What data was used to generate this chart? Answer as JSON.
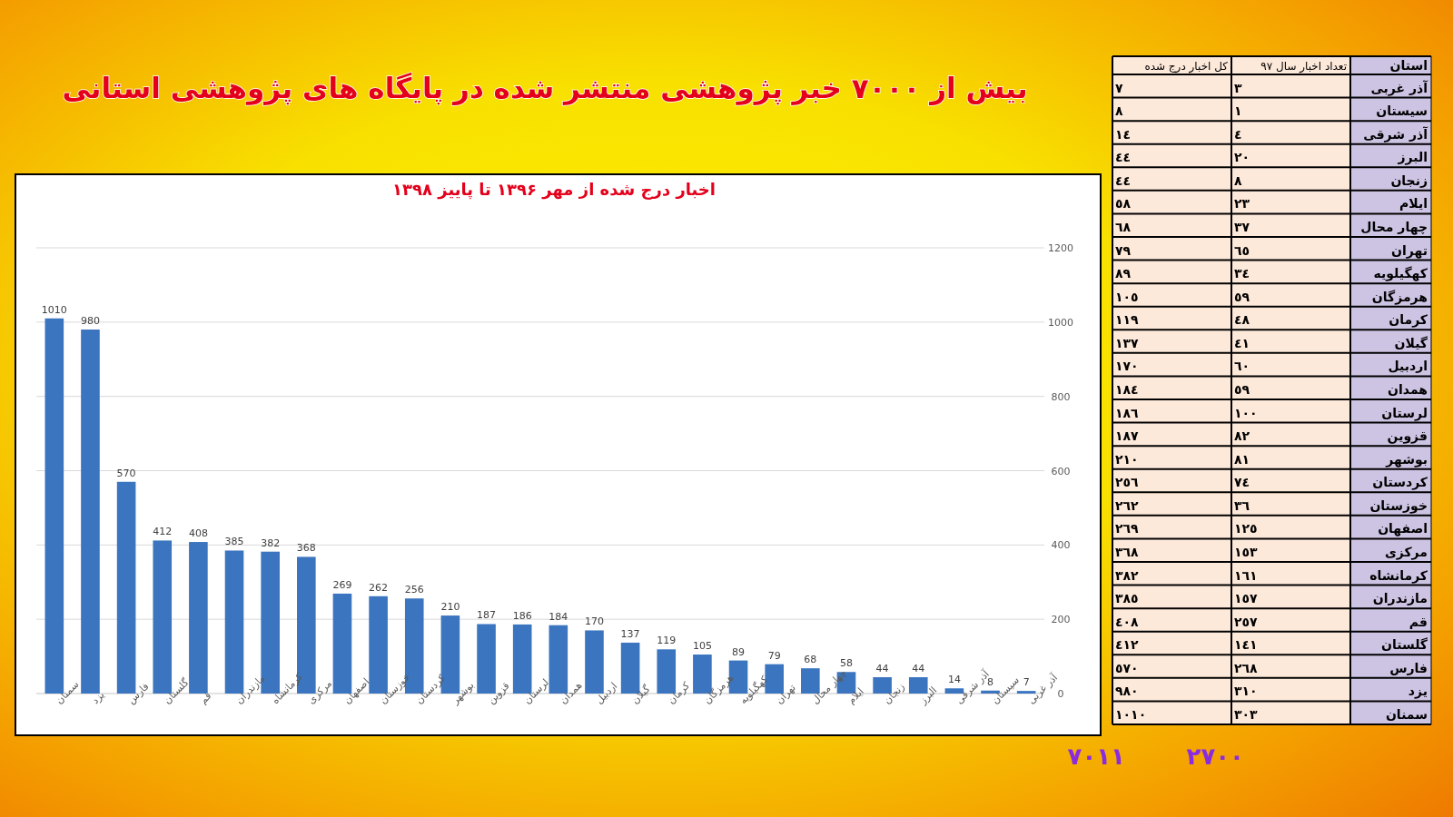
{
  "chart_data": [
    {
      "type": "bar",
      "title": "بیش از ۷۰۰۰ خبر پژوهشی منتشر شده در پایگاه های پژوهشی استانی",
      "subtitle": "اخبار درج شده از مهر ۱۳۹۶ تا پاییز ۱۳۹۸",
      "categories": [
        "سمنان",
        "یزد",
        "فارس",
        "گلستان",
        "قم",
        "مازندران",
        "کرمانشاه",
        "مرکزی",
        "اصفهان",
        "خوزستان",
        "کردستان",
        "بوشهر",
        "قزوین",
        "لرستان",
        "همدان",
        "اردبیل",
        "گیلان",
        "کرمان",
        "هرمزگان",
        "کهگیلویه",
        "تهران",
        "چهار محال",
        "ایلام",
        "زنجان",
        "البرز",
        "آذر شرقی",
        "سیستان",
        "آذر غربی"
      ],
      "values": [
        1010,
        980,
        570,
        412,
        408,
        385,
        382,
        368,
        269,
        262,
        256,
        210,
        187,
        186,
        184,
        170,
        137,
        119,
        105,
        89,
        79,
        68,
        58,
        44,
        44,
        14,
        8,
        7
      ],
      "color": "#3b74bf",
      "ylim": [
        0,
        1200
      ],
      "yticks": [
        0,
        200,
        400,
        600,
        800,
        1000,
        1200
      ],
      "grid": "y",
      "data_labels": true
    },
    {
      "type": "other",
      "ylabel": "استان",
      "categories": [
        "آذر غربی",
        "سیستان",
        "آذر شرقی",
        "البرز",
        "زنجان",
        "ایلام",
        "چهار محال",
        "تهران",
        "کهگیلویه",
        "هرمزگان",
        "کرمان",
        "گیلان",
        "اردبیل",
        "همدان",
        "لرستان",
        "قزوین",
        "بوشهر",
        "کردستان",
        "خوزستان",
        "اصفهان",
        "مرکزی",
        "کرمانشاه",
        "مازندران",
        "قم",
        "گلستان",
        "فارس",
        "یزد",
        "سمنان"
      ],
      "series": [
        {
          "name": "تعداد اخبار سال ۹۷",
          "values": [
            3,
            1,
            4,
            20,
            8,
            23,
            37,
            65,
            34,
            59,
            48,
            41,
            60,
            59,
            100,
            82,
            81,
            74,
            36,
            125,
            153,
            161,
            157,
            257,
            141,
            268,
            310,
            303
          ],
          "value_labels": [
            "٣",
            "١",
            "٤",
            "٢٠",
            "٨",
            "٢٣",
            "٣٧",
            "٦٥",
            "٣٤",
            "٥٩",
            "٤٨",
            "٤١",
            "٦٠",
            "٥٩",
            "١٠٠",
            "٨٢",
            "٨١",
            "٧٤",
            "٣٦",
            "١٢٥",
            "١٥٣",
            "١٦١",
            "١٥٧",
            "٢٥٧",
            "١٤١",
            "٢٦٨",
            "٣١٠",
            "٣٠٣"
          ]
        },
        {
          "name": "کل اخبار درج شده",
          "values": [
            7,
            8,
            14,
            44,
            44,
            58,
            68,
            79,
            89,
            105,
            119,
            137,
            170,
            184,
            186,
            187,
            210,
            256,
            262,
            269,
            368,
            382,
            385,
            408,
            412,
            570,
            980,
            1010
          ],
          "value_labels": [
            "٧",
            "٨",
            "١٤",
            "٤٤",
            "٤٤",
            "٥٨",
            "٦٨",
            "٧٩",
            "٨٩",
            "١٠٥",
            "١١٩",
            "١٣٧",
            "١٧٠",
            "١٨٤",
            "١٨٦",
            "١٨٧",
            "٢١٠",
            "٢٥٦",
            "٢٦٢",
            "٢٦٩",
            "٣٦٨",
            "٣٨٢",
            "٣٨٥",
            "٤٠٨",
            "٤١٢",
            "٥٧٠",
            "٩٨٠",
            "١٠١٠"
          ]
        }
      ],
      "totals": [
        "۲۷۰۰",
        "۷۰۱۱"
      ]
    }
  ]
}
